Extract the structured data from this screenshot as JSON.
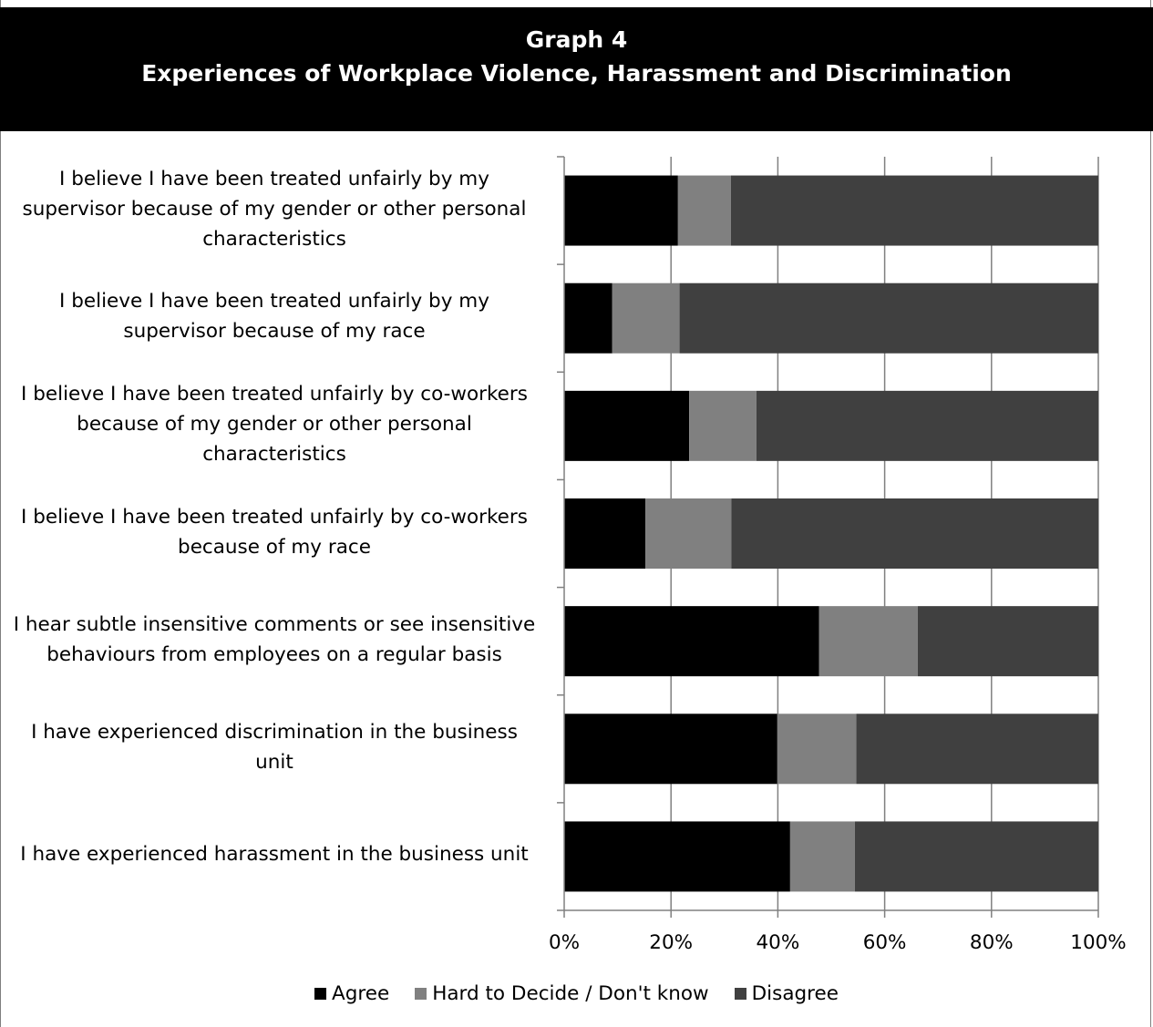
{
  "chart_data": {
    "type": "bar",
    "orientation": "horizontal",
    "stacked": "percent",
    "title": "Graph 4",
    "subtitle": "Experiences of Workplace Violence, Harassment and Discrimination",
    "categories": [
      "I believe I have been treated unfairly by my supervisor because of my gender or other personal characteristics",
      "I believe I have been treated unfairly by my supervisor because of my race",
      "I believe I have been treated unfairly by co-workers because of my gender or other personal characteristics",
      "I believe I have been treated unfairly by co-workers because of my race",
      "I hear subtle insensitive comments or see insensitive behaviours from employees on a regular basis",
      "I have experienced discrimination in the business unit",
      "I have experienced harassment in the business unit"
    ],
    "series": [
      {
        "name": "Agree",
        "color": "#000000",
        "values": [
          21.3,
          9.0,
          23.4,
          15.2,
          47.7,
          39.9,
          42.3
        ]
      },
      {
        "name": "Hard to Decide / Don't know",
        "color": "#808080",
        "values": [
          9.9,
          12.6,
          12.6,
          16.1,
          18.5,
          14.8,
          12.1
        ]
      },
      {
        "name": "Disagree",
        "color": "#404040",
        "values": [
          68.8,
          78.4,
          64.0,
          68.7,
          33.8,
          45.3,
          45.6
        ]
      }
    ],
    "xlim": [
      0,
      100
    ],
    "xticks": [
      "0%",
      "20%",
      "40%",
      "60%",
      "80%",
      "100%"
    ],
    "grid": true,
    "legend": "bottom"
  }
}
